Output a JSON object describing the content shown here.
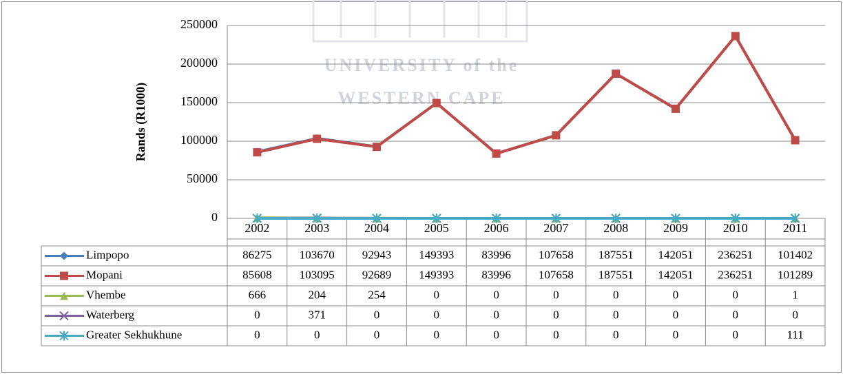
{
  "watermark": [
    "UNIVERSITY of the",
    "WESTERN CAPE"
  ],
  "chart_data": {
    "type": "line",
    "y_label": "Rands (R1000)",
    "categories": [
      "2002",
      "2003",
      "2004",
      "2005",
      "2006",
      "2007",
      "2008",
      "2009",
      "2010",
      "2011"
    ],
    "series": [
      {
        "name": "Limpopo",
        "color": "#4a7ebb",
        "marker": "diamond",
        "values": [
          86275,
          103670,
          92943,
          149393,
          83996,
          107658,
          187551,
          142051,
          236251,
          101402
        ]
      },
      {
        "name": "Mopani",
        "color": "#be4b48",
        "marker": "square",
        "values": [
          85608,
          103095,
          92689,
          149393,
          83996,
          107658,
          187551,
          142051,
          236251,
          101289
        ]
      },
      {
        "name": "Vhembe",
        "color": "#98b954",
        "marker": "triangle",
        "values": [
          666,
          204,
          254,
          0,
          0,
          0,
          0,
          0,
          0,
          1
        ]
      },
      {
        "name": "Waterberg",
        "color": "#7d60a0",
        "marker": "x",
        "values": [
          0,
          371,
          0,
          0,
          0,
          0,
          0,
          0,
          0,
          0
        ]
      },
      {
        "name": "Greater Sekhukhune",
        "color": "#46aac5",
        "marker": "star",
        "values": [
          0,
          0,
          0,
          0,
          0,
          0,
          0,
          0,
          0,
          111
        ]
      }
    ],
    "ylim": [
      0,
      250000
    ],
    "yticks": [
      0,
      50000,
      100000,
      150000,
      200000,
      250000
    ],
    "grid": true,
    "data_table": true
  }
}
